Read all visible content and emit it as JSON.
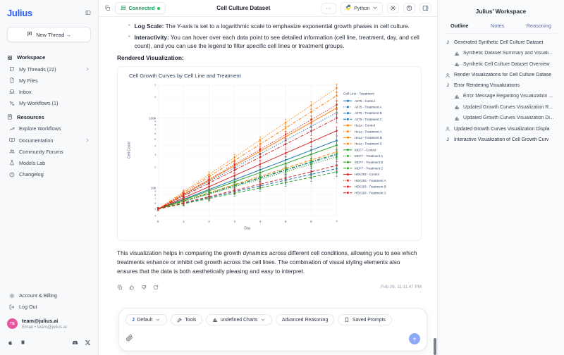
{
  "sidebar": {
    "logo": "Julius",
    "new_thread_label": "New Thread →",
    "sections": [
      {
        "icon": "grid",
        "label": "Workspace",
        "items": [
          {
            "icon": "chat",
            "label": "My Threads (22)",
            "chevron": true
          },
          {
            "icon": "file",
            "label": "My Files"
          },
          {
            "icon": "inbox",
            "label": "Inbox"
          },
          {
            "icon": "workflow",
            "label": "My Workflows (1)"
          }
        ]
      },
      {
        "icon": "book",
        "label": "Resources",
        "items": [
          {
            "icon": "trend",
            "label": "Explore Workflows"
          },
          {
            "icon": "book-open",
            "label": "Documentation",
            "chevron": true
          },
          {
            "icon": "people",
            "label": "Community Forums"
          },
          {
            "icon": "flask",
            "label": "Models Lab"
          },
          {
            "icon": "clock",
            "label": "Changelog"
          }
        ]
      }
    ],
    "footer_items": [
      {
        "icon": "gear",
        "label": "Account & Billing"
      },
      {
        "icon": "logout",
        "label": "Log Out"
      }
    ],
    "user": {
      "initials": "TE",
      "name": "team@julius.ai",
      "email": "Email • team@julius.ai"
    }
  },
  "topbar": {
    "connected_label": "Connected",
    "title": "Cell Culture Dataset",
    "more_label": "···",
    "python_label": "Python"
  },
  "message": {
    "bullets": [
      {
        "bold": "Log Scale:",
        "text": " The Y-axis is set to a logarithmic scale to emphasize exponential growth phases in cell culture."
      },
      {
        "bold": "Interactivity:",
        "text": " You can hover over each data point to see detailed information (cell line, treatment, day, and cell count), and you can use the legend to filter specific cell lines or treatment groups."
      }
    ],
    "rendered_viz_label": "Rendered Visualization:",
    "closing_paragraph": "This visualization helps in comparing the growth dynamics across different cell conditions, allowing you to see which treatments enhance or inhibit cell growth across the cell lines. The combination of visual styling elements also ensures that the data is both aesthetically pleasing and easy to interpret.",
    "timestamp": "Feb 26, 11:11:47 PM"
  },
  "chart_data": {
    "type": "line",
    "title": "Cell Growth Curves by Cell Line and Treatment",
    "xlabel": "Day",
    "ylabel": "Cell Count",
    "x": [
      0,
      1,
      2,
      3,
      4,
      5,
      6,
      7
    ],
    "y_scale": "log",
    "ylim": [
      3800,
      320000
    ],
    "ytick_major": [
      {
        "value": 10000,
        "label": "10k"
      },
      {
        "value": 100000,
        "label": "100k"
      }
    ],
    "grid": true,
    "legend_title": "Cell Line - Treatment",
    "legend_position": "right",
    "error_frac": [
      0.05,
      0.07,
      0.09,
      0.1,
      0.11,
      0.12,
      0.13,
      0.14
    ],
    "series": [
      {
        "name": "A375 - Control",
        "color": "#1f77b4",
        "dash": "solid",
        "values": [
          5000,
          6900,
          9540,
          13180,
          18210,
          25150,
          34740,
          48000
        ]
      },
      {
        "name": "A375 - Treatment A",
        "color": "#1f77b4",
        "dash": "dot",
        "values": [
          5000,
          7870,
          12400,
          19520,
          30740,
          48400,
          76200,
          120000
        ]
      },
      {
        "name": "A375 - Treatment B",
        "color": "#1f77b4",
        "dash": "dash",
        "values": [
          5000,
          6050,
          7320,
          8860,
          10720,
          12980,
          15700,
          19000
        ]
      },
      {
        "name": "A375 - Treatment C",
        "color": "#1f77b4",
        "dash": "dashdot",
        "values": [
          5000,
          6460,
          8340,
          10780,
          13930,
          17990,
          23240,
          30000
        ]
      },
      {
        "name": "HeLa - Control",
        "color": "#ff7f0e",
        "dash": "solid",
        "values": [
          5000,
          8050,
          12950,
          20850,
          33560,
          54020,
          86950,
          140000
        ]
      },
      {
        "name": "HeLa - Treatment A",
        "color": "#ff7f0e",
        "dash": "dot",
        "values": [
          5000,
          8840,
          15630,
          27630,
          48860,
          86380,
          152710,
          270000
        ]
      },
      {
        "name": "HeLa - Treatment B",
        "color": "#ff7f0e",
        "dash": "dash",
        "values": [
          5000,
          6550,
          8570,
          11230,
          14700,
          19250,
          25200,
          33000
        ]
      },
      {
        "name": "HeLa - Treatment C",
        "color": "#ff7f0e",
        "dash": "dashdot",
        "values": [
          5000,
          8530,
          14550,
          24810,
          42320,
          72180,
          123100,
          210000
        ]
      },
      {
        "name": "MCF7 - Control",
        "color": "#2ca02c",
        "dash": "solid",
        "values": [
          5000,
          6750,
          9120,
          12320,
          16640,
          22480,
          30360,
          41000
        ]
      },
      {
        "name": "MCF7 - Treatment A",
        "color": "#2ca02c",
        "dash": "dot",
        "values": [
          5000,
          6400,
          8180,
          10460,
          13380,
          17120,
          21900,
          28000
        ]
      },
      {
        "name": "MCF7 - Treatment B",
        "color": "#2ca02c",
        "dash": "dash",
        "values": [
          5000,
          5960,
          7090,
          8450,
          10060,
          11980,
          14270,
          17000
        ]
      },
      {
        "name": "MCF7 - Treatment C",
        "color": "#2ca02c",
        "dash": "dashdot",
        "values": [
          5000,
          6490,
          8420,
          10930,
          14180,
          18400,
          23880,
          31000
        ]
      },
      {
        "name": "HEK293 - Control",
        "color": "#d62728",
        "dash": "solid",
        "values": [
          5000,
          7230,
          10450,
          15110,
          21850,
          31590,
          45680,
          66000
        ]
      },
      {
        "name": "HEK293 - Treatment A",
        "color": "#d62728",
        "dash": "dot",
        "values": [
          5000,
          8170,
          13340,
          21790,
          35580,
          58110,
          94910,
          155000
        ]
      },
      {
        "name": "HEK293 - Treatment B",
        "color": "#d62728",
        "dash": "dash",
        "values": [
          5000,
          6140,
          7530,
          9250,
          11350,
          13930,
          17100,
          21000
        ]
      },
      {
        "name": "HEK293 - Treatment C",
        "color": "#d62728",
        "dash": "dashdot",
        "values": [
          5000,
          7670,
          11770,
          18050,
          27690,
          42480,
          65170,
          100000
        ]
      }
    ]
  },
  "composer": {
    "pills": [
      {
        "icon": "jletter",
        "label": "Default",
        "chevron": true
      },
      {
        "icon": "wrench",
        "label": "Tools"
      },
      {
        "icon": "chart-mini",
        "label": "undefined Charts",
        "chevron": true
      },
      {
        "label": "Advanced Reasoning"
      },
      {
        "icon": "bookmark",
        "label": "Saved Prompts"
      }
    ]
  },
  "workspace_panel": {
    "title": "Julius' Workspace",
    "tabs": [
      "Outline",
      "Notes",
      "Reasoning"
    ],
    "active_tab": "Outline",
    "items": [
      {
        "icon": "julius",
        "label": "Generated Synthetic Cell Culture Dataset",
        "children": [
          "Synthetic Dataset Summary and Visuali...",
          "Synthetic Cell Culture Dataset Overview"
        ]
      },
      {
        "icon": "user",
        "label": "Render Visualizations for Cell Culture Datase"
      },
      {
        "icon": "julius",
        "label": "Error Rendering Visualizations",
        "children": [
          "Error Message Regarding Visualization ...",
          "Updated Growth Curves Visualization R...",
          "Updated Growth Curves Visualization Di..."
        ]
      },
      {
        "icon": "user",
        "label": "Updated Growth Curves Visualization Displa"
      },
      {
        "icon": "julius",
        "label": "Interactive Visualization of Cell Growth Curv"
      }
    ]
  }
}
